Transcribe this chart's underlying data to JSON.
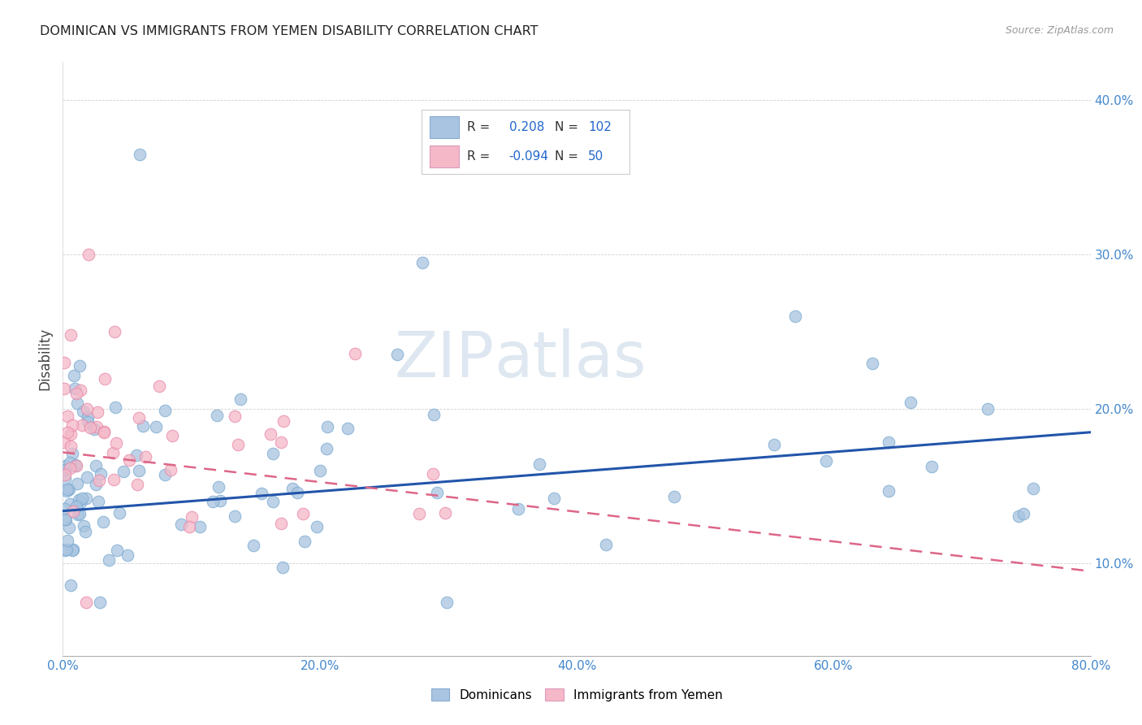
{
  "title": "DOMINICAN VS IMMIGRANTS FROM YEMEN DISABILITY CORRELATION CHART",
  "source": "Source: ZipAtlas.com",
  "ylabel": "Disability",
  "ytick_labels": [
    "10.0%",
    "20.0%",
    "30.0%",
    "40.0%"
  ],
  "xtick_labels": [
    "0.0%",
    "20.0%",
    "40.0%",
    "60.0%",
    "80.0%"
  ],
  "blue_color": "#a8c4e0",
  "pink_color": "#f4b8c8",
  "line_blue": "#2255aa",
  "line_pink": "#dd6688",
  "watermark_zip": "ZIP",
  "watermark_atlas": "atlas",
  "blue_line_y0": 0.134,
  "blue_line_y1": 0.185,
  "pink_line_y0": 0.172,
  "pink_line_y1": 0.095,
  "xlim": [
    0.0,
    0.8
  ],
  "ylim": [
    0.04,
    0.425
  ],
  "yticks": [
    0.1,
    0.2,
    0.3,
    0.4
  ],
  "xticks": [
    0.0,
    0.2,
    0.4,
    0.6,
    0.8
  ],
  "legend_r1_label": "R =",
  "legend_r1_val": "0.208",
  "legend_n1_label": "N =",
  "legend_n1_val": "102",
  "legend_r2_label": "R =",
  "legend_r2_val": "-0.094",
  "legend_n2_label": "N =",
  "legend_n2_val": "50"
}
